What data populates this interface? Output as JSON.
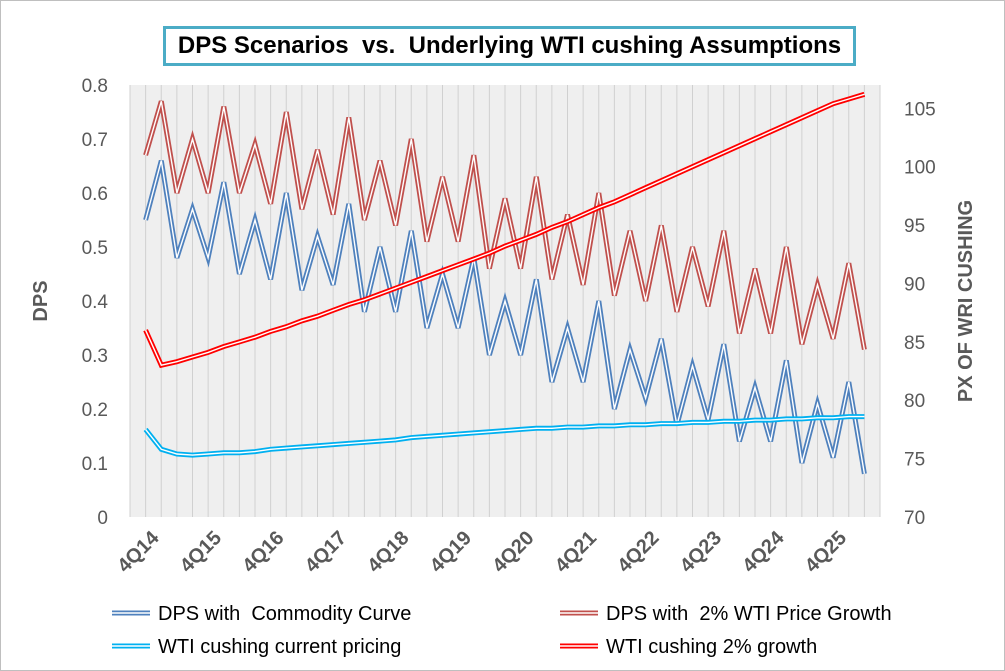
{
  "chart_data": {
    "type": "line",
    "title": "DPS Scenarios  vs.  Underlying WTI cushing Assumptions",
    "y_left": {
      "label": "DPS",
      "ticks": [
        "0",
        "0.1",
        "0.2",
        "0.3",
        "0.4",
        "0.5",
        "0.6",
        "0.7",
        "0.8"
      ],
      "range": [
        0,
        0.8
      ]
    },
    "y_right": {
      "label": "PX  OF WRI CUSHING",
      "ticks": [
        "70",
        "75",
        "80",
        "85",
        "90",
        "95",
        "100",
        "105"
      ],
      "range": [
        70,
        107
      ]
    },
    "x_labels": [
      "4Q14",
      "4Q15",
      "4Q16",
      "4Q17",
      "4Q18",
      "4Q19",
      "4Q20",
      "4Q21",
      "4Q22",
      "4Q23",
      "4Q24",
      "4Q25"
    ],
    "grid": "vertical",
    "legend_position": "bottom",
    "series": [
      {
        "name": "DPS with  Commodity Curve",
        "axis": "left",
        "color": "#4f81bd",
        "values": [
          0.55,
          0.66,
          0.48,
          0.57,
          0.48,
          0.62,
          0.45,
          0.55,
          0.44,
          0.6,
          0.42,
          0.52,
          0.43,
          0.58,
          0.38,
          0.5,
          0.38,
          0.53,
          0.35,
          0.45,
          0.35,
          0.48,
          0.3,
          0.4,
          0.3,
          0.44,
          0.25,
          0.35,
          0.25,
          0.4,
          0.2,
          0.31,
          0.22,
          0.33,
          0.17,
          0.28,
          0.18,
          0.32,
          0.14,
          0.24,
          0.14,
          0.29,
          0.1,
          0.21,
          0.11,
          0.25,
          0.08
        ]
      },
      {
        "name": "DPS with  2% WTI Price Growth",
        "axis": "left",
        "color": "#c0504d",
        "values": [
          0.67,
          0.77,
          0.6,
          0.7,
          0.6,
          0.76,
          0.6,
          0.69,
          0.58,
          0.75,
          0.57,
          0.68,
          0.56,
          0.74,
          0.55,
          0.66,
          0.54,
          0.7,
          0.51,
          0.63,
          0.51,
          0.67,
          0.46,
          0.59,
          0.46,
          0.63,
          0.44,
          0.56,
          0.43,
          0.6,
          0.41,
          0.53,
          0.4,
          0.54,
          0.38,
          0.5,
          0.39,
          0.53,
          0.34,
          0.46,
          0.34,
          0.5,
          0.32,
          0.43,
          0.33,
          0.47,
          0.31
        ]
      },
      {
        "name": "WTI cushing current pricing",
        "axis": "right",
        "color": "#00b0f0",
        "values": [
          77.5,
          75.8,
          75.4,
          75.3,
          75.4,
          75.5,
          75.5,
          75.6,
          75.8,
          75.9,
          76.0,
          76.1,
          76.2,
          76.3,
          76.4,
          76.5,
          76.6,
          76.8,
          76.9,
          77.0,
          77.1,
          77.2,
          77.3,
          77.4,
          77.5,
          77.6,
          77.6,
          77.7,
          77.7,
          77.8,
          77.8,
          77.9,
          77.9,
          78.0,
          78.0,
          78.1,
          78.1,
          78.2,
          78.2,
          78.3,
          78.3,
          78.4,
          78.4,
          78.5,
          78.5,
          78.6,
          78.6
        ]
      },
      {
        "name": "WTI cushing 2% growth",
        "axis": "right",
        "color": "#ff0000",
        "values": [
          86.0,
          83.0,
          83.3,
          83.7,
          84.1,
          84.6,
          85.0,
          85.4,
          85.9,
          86.3,
          86.8,
          87.2,
          87.7,
          88.2,
          88.6,
          89.1,
          89.6,
          90.1,
          90.6,
          91.1,
          91.6,
          92.1,
          92.6,
          93.2,
          93.7,
          94.2,
          94.8,
          95.3,
          95.9,
          96.5,
          97.0,
          97.6,
          98.2,
          98.8,
          99.4,
          100.0,
          100.6,
          101.2,
          101.8,
          102.4,
          103.0,
          103.6,
          104.2,
          104.8,
          105.4,
          105.8,
          106.2
        ]
      }
    ]
  }
}
